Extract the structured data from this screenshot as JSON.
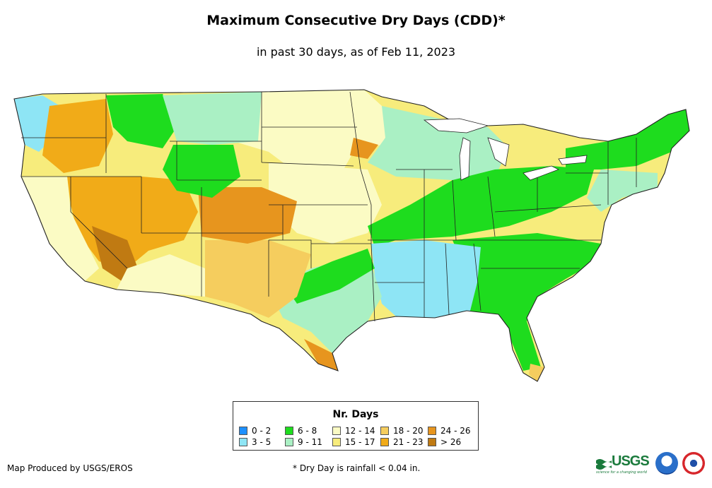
{
  "header": {
    "title": "Maximum Consecutive Dry Days (CDD)*",
    "subtitle": "in past 30 days, as of Feb 11, 2023"
  },
  "legend": {
    "title": "Nr. Days",
    "items": [
      {
        "label": "0 - 2",
        "color": "#1e90ff"
      },
      {
        "label": "3 - 5",
        "color": "#8ee5f5"
      },
      {
        "label": "6 - 8",
        "color": "#1edc1e"
      },
      {
        "label": "9 - 11",
        "color": "#aaf0c4"
      },
      {
        "label": "12 - 14",
        "color": "#fbfbc4"
      },
      {
        "label": "15 - 17",
        "color": "#f7ec7c"
      },
      {
        "label": "18 - 20",
        "color": "#f5cd5e"
      },
      {
        "label": "21 - 23",
        "color": "#f1ab18"
      },
      {
        "label": "24 - 26",
        "color": "#e7951e"
      },
      {
        "label": "> 26",
        "color": "#c07a12"
      }
    ]
  },
  "footer": {
    "credit": "Map Produced by USGS/EROS",
    "footnote": "* Dry Day is rainfall < 0.04 in.",
    "usgs_logo_text": "USGS",
    "usgs_tagline": "science for a changing world"
  },
  "icons": {
    "usgs_logo": "usgs-logo-icon",
    "noaa_logo": "noaa-logo-icon",
    "nws_logo": "nws-logo-icon"
  }
}
